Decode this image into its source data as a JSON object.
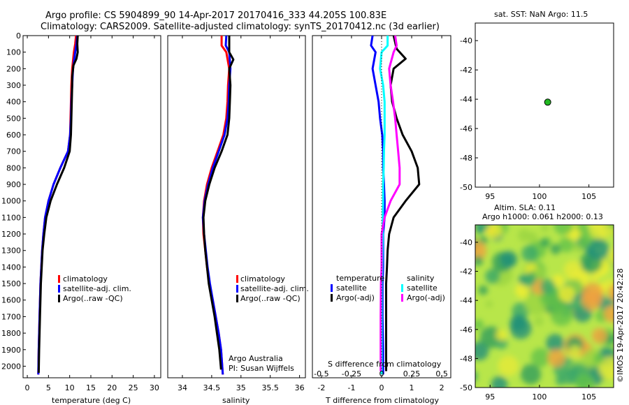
{
  "header": {
    "line1": "Argo profile: CS 5904899_90 14-Apr-2017 20170416_333 44.205S 100.83E",
    "line2": "Climatology: CARS2009. Satellite-adjusted climatology: synTS_20170412.nc (3d earlier)"
  },
  "colors": {
    "climatology": "#ff0000",
    "satellite": "#0000ff",
    "argo": "#000000",
    "sat_s": "#00ffff",
    "argo_s": "#ff00ff"
  },
  "chart_data": [
    {
      "id": "temperature",
      "type": "line",
      "xlabel": "temperature (deg C)",
      "xlim": [
        -1,
        31.5
      ],
      "xticks": [
        "0",
        "5",
        "10",
        "15",
        "20",
        "25",
        "30"
      ],
      "ylim": [
        0,
        2070
      ],
      "yticks": [
        "0",
        "100",
        "200",
        "300",
        "400",
        "500",
        "600",
        "700",
        "800",
        "900",
        "1000",
        "1100",
        "1200",
        "1300",
        "1400",
        "1500",
        "1600",
        "1700",
        "1800",
        "1900",
        "2000"
      ],
      "legend": [
        "climatology",
        "satellite-adj. clim.",
        "Argo(..raw -QC)"
      ],
      "series": [
        {
          "name": "climatology",
          "color": "#ff0000",
          "points": [
            [
              11.5,
              0
            ],
            [
              11.3,
              50
            ],
            [
              11.0,
              100
            ],
            [
              10.6,
              200
            ],
            [
              10.4,
              300
            ],
            [
              10.3,
              400
            ],
            [
              10.2,
              500
            ],
            [
              10.1,
              600
            ],
            [
              9.6,
              700
            ],
            [
              7.8,
              800
            ],
            [
              6.2,
              900
            ],
            [
              5.0,
              1000
            ],
            [
              4.2,
              1100
            ],
            [
              3.8,
              1200
            ],
            [
              3.5,
              1300
            ],
            [
              3.3,
              1400
            ],
            [
              3.1,
              1500
            ],
            [
              2.9,
              1700
            ],
            [
              2.7,
              1900
            ],
            [
              2.6,
              2050
            ]
          ]
        },
        {
          "name": "satellite-adj. clim.",
          "color": "#0000ff",
          "points": [
            [
              11.8,
              0
            ],
            [
              11.6,
              50
            ],
            [
              11.3,
              100
            ],
            [
              10.8,
              200
            ],
            [
              10.6,
              300
            ],
            [
              10.4,
              400
            ],
            [
              10.3,
              500
            ],
            [
              10.1,
              600
            ],
            [
              9.6,
              700
            ],
            [
              7.8,
              800
            ],
            [
              6.2,
              900
            ],
            [
              5.0,
              1000
            ],
            [
              4.2,
              1100
            ],
            [
              3.8,
              1200
            ],
            [
              3.5,
              1300
            ],
            [
              3.3,
              1400
            ],
            [
              3.1,
              1500
            ],
            [
              2.9,
              1700
            ],
            [
              2.7,
              1900
            ],
            [
              2.6,
              2050
            ]
          ]
        },
        {
          "name": "Argo(..raw -QC)",
          "color": "#000000",
          "points": [
            [
              11.9,
              0
            ],
            [
              11.8,
              50
            ],
            [
              11.9,
              100
            ],
            [
              11.6,
              140
            ],
            [
              10.9,
              180
            ],
            [
              10.6,
              250
            ],
            [
              10.6,
              300
            ],
            [
              10.5,
              400
            ],
            [
              10.4,
              500
            ],
            [
              10.3,
              600
            ],
            [
              10.0,
              700
            ],
            [
              8.7,
              800
            ],
            [
              7.0,
              900
            ],
            [
              5.5,
              1000
            ],
            [
              4.5,
              1100
            ],
            [
              4.0,
              1200
            ],
            [
              3.6,
              1300
            ],
            [
              3.4,
              1400
            ],
            [
              3.2,
              1500
            ],
            [
              3.0,
              1700
            ],
            [
              2.8,
              1900
            ],
            [
              2.7,
              2040
            ]
          ]
        }
      ]
    },
    {
      "id": "salinity",
      "type": "line",
      "xlabel": "salinity",
      "xlim": [
        33.75,
        36.1
      ],
      "xticks": [
        "34",
        "34.5",
        "35",
        "35.5",
        "36"
      ],
      "ylim": [
        0,
        2070
      ],
      "legend": [
        "climatology",
        "satellite-adj. clim.",
        "Argo(..raw -QC)"
      ],
      "annotations": [
        "Argo Australia",
        "PI: Susan Wijffels"
      ],
      "series": [
        {
          "name": "climatology",
          "color": "#ff0000",
          "points": [
            [
              34.67,
              0
            ],
            [
              34.67,
              60
            ],
            [
              34.75,
              100
            ],
            [
              34.8,
              200
            ],
            [
              34.78,
              300
            ],
            [
              34.77,
              400
            ],
            [
              34.75,
              500
            ],
            [
              34.7,
              600
            ],
            [
              34.6,
              700
            ],
            [
              34.5,
              800
            ],
            [
              34.42,
              900
            ],
            [
              34.37,
              1000
            ],
            [
              34.35,
              1100
            ],
            [
              34.36,
              1200
            ],
            [
              34.39,
              1300
            ],
            [
              34.42,
              1400
            ],
            [
              34.46,
              1500
            ],
            [
              34.52,
              1600
            ],
            [
              34.57,
              1700
            ],
            [
              34.62,
              1800
            ],
            [
              34.66,
              1900
            ],
            [
              34.69,
              2050
            ]
          ]
        },
        {
          "name": "satellite-adj. clim.",
          "color": "#0000ff",
          "points": [
            [
              34.75,
              0
            ],
            [
              34.74,
              60
            ],
            [
              34.8,
              100
            ],
            [
              34.82,
              200
            ],
            [
              34.8,
              300
            ],
            [
              34.79,
              400
            ],
            [
              34.77,
              500
            ],
            [
              34.72,
              600
            ],
            [
              34.62,
              700
            ],
            [
              34.52,
              800
            ],
            [
              34.44,
              900
            ],
            [
              34.38,
              1000
            ],
            [
              34.35,
              1100
            ],
            [
              34.37,
              1200
            ],
            [
              34.4,
              1300
            ],
            [
              34.43,
              1400
            ],
            [
              34.47,
              1500
            ],
            [
              34.52,
              1600
            ],
            [
              34.57,
              1700
            ],
            [
              34.62,
              1800
            ],
            [
              34.66,
              1900
            ],
            [
              34.69,
              2050
            ]
          ]
        },
        {
          "name": "Argo(..raw -QC)",
          "color": "#000000",
          "points": [
            [
              34.8,
              0
            ],
            [
              34.8,
              100
            ],
            [
              34.87,
              145
            ],
            [
              34.8,
              200
            ],
            [
              34.82,
              300
            ],
            [
              34.81,
              400
            ],
            [
              34.8,
              500
            ],
            [
              34.77,
              600
            ],
            [
              34.67,
              700
            ],
            [
              34.55,
              800
            ],
            [
              34.46,
              900
            ],
            [
              34.39,
              1000
            ],
            [
              34.36,
              1100
            ],
            [
              34.37,
              1200
            ],
            [
              34.39,
              1300
            ],
            [
              34.42,
              1400
            ],
            [
              34.45,
              1500
            ],
            [
              34.5,
              1600
            ],
            [
              34.55,
              1700
            ],
            [
              34.59,
              1800
            ],
            [
              34.63,
              1900
            ],
            [
              34.66,
              2020
            ]
          ]
        }
      ]
    },
    {
      "id": "difference",
      "type": "line",
      "xlabel": "T difference from climatology",
      "xlim": [
        -2.3,
        2.3
      ],
      "xticks": [
        "-2",
        "-1",
        "0",
        "1",
        "2"
      ],
      "top_label": "S difference from climatology",
      "top_ticks": [
        "-0.5",
        "-0.25",
        "0",
        "0.25",
        "0.5"
      ],
      "ylim": [
        0,
        2070
      ],
      "legend_headers": [
        "temperature",
        "salinity"
      ],
      "legend": [
        "satellite",
        "Argo(-adj)",
        "satellite",
        "Argo(-adj)"
      ],
      "series": [
        {
          "name": "satellite",
          "quantity": "temperature",
          "color": "#0000ff",
          "points": [
            [
              -0.3,
              0
            ],
            [
              -0.35,
              60
            ],
            [
              -0.2,
              100
            ],
            [
              -0.3,
              200
            ],
            [
              -0.2,
              300
            ],
            [
              -0.1,
              400
            ],
            [
              -0.05,
              500
            ],
            [
              0.02,
              600
            ],
            [
              0.05,
              700
            ],
            [
              0.05,
              800
            ],
            [
              0.08,
              900
            ],
            [
              0.1,
              1000
            ],
            [
              0.1,
              1100
            ],
            [
              0.05,
              1200
            ],
            [
              0.05,
              1300
            ],
            [
              0.05,
              1400
            ],
            [
              0.03,
              1500
            ],
            [
              0.03,
              1700
            ],
            [
              0.05,
              1900
            ],
            [
              0.05,
              2050
            ]
          ]
        },
        {
          "name": "Argo(-adj)",
          "quantity": "temperature",
          "color": "#000000",
          "points": [
            [
              0.4,
              0
            ],
            [
              0.5,
              80
            ],
            [
              0.8,
              140
            ],
            [
              0.4,
              200
            ],
            [
              0.3,
              300
            ],
            [
              0.35,
              400
            ],
            [
              0.5,
              500
            ],
            [
              0.7,
              600
            ],
            [
              1.0,
              700
            ],
            [
              1.2,
              800
            ],
            [
              1.25,
              900
            ],
            [
              0.8,
              1000
            ],
            [
              0.4,
              1100
            ],
            [
              0.25,
              1200
            ],
            [
              0.2,
              1300
            ],
            [
              0.18,
              1400
            ],
            [
              0.15,
              1500
            ],
            [
              0.15,
              1700
            ],
            [
              0.15,
              1900
            ],
            [
              0.15,
              2030
            ]
          ]
        },
        {
          "name": "satellite",
          "quantity": "salinity",
          "color": "#00ffff",
          "points": [
            [
              0.2,
              0
            ],
            [
              0.2,
              60
            ],
            [
              0.0,
              100
            ],
            [
              -0.05,
              200
            ],
            [
              0.05,
              300
            ],
            [
              0.1,
              400
            ],
            [
              0.1,
              500
            ],
            [
              0.1,
              600
            ],
            [
              0.08,
              700
            ],
            [
              0.07,
              800
            ],
            [
              0.05,
              900
            ],
            [
              0.05,
              1000
            ],
            [
              0.04,
              1100
            ],
            [
              0.04,
              1200
            ],
            [
              0.03,
              1300
            ],
            [
              0.02,
              1400
            ],
            [
              0.0,
              1500
            ],
            [
              0.0,
              1700
            ],
            [
              0.0,
              1900
            ],
            [
              0.0,
              2050
            ]
          ]
        },
        {
          "name": "Argo(-adj)",
          "quantity": "salinity",
          "color": "#ff00ff",
          "points": [
            [
              0.45,
              0
            ],
            [
              0.5,
              60
            ],
            [
              0.4,
              100
            ],
            [
              0.25,
              200
            ],
            [
              0.3,
              300
            ],
            [
              0.38,
              400
            ],
            [
              0.45,
              500
            ],
            [
              0.5,
              600
            ],
            [
              0.55,
              700
            ],
            [
              0.6,
              800
            ],
            [
              0.6,
              900
            ],
            [
              0.3,
              1000
            ],
            [
              0.1,
              1100
            ],
            [
              0.0,
              1200
            ],
            [
              0.0,
              1300
            ],
            [
              0.0,
              1400
            ],
            [
              -0.02,
              1500
            ],
            [
              -0.03,
              1700
            ],
            [
              -0.03,
              1900
            ],
            [
              -0.03,
              2030
            ]
          ]
        }
      ]
    },
    {
      "id": "map",
      "type": "scatter",
      "title": "sat. SST: NaN Argo: 11.5",
      "xlim": [
        93.5,
        107.5
      ],
      "ylim": [
        -50,
        -38.8
      ],
      "xticks": [
        "95",
        "100",
        "105"
      ],
      "yticks": [
        "-40",
        "-42",
        "-44",
        "-46",
        "-48",
        "-50"
      ],
      "points": [
        [
          100.83,
          -44.2
        ]
      ]
    },
    {
      "id": "sla",
      "type": "heatmap",
      "title1": "Altim. SLA: 0.11",
      "title2": "Argo h1000: 0.061 h2000: 0.13",
      "xlim": [
        93.5,
        107.5
      ],
      "ylim": [
        -50,
        -38.8
      ],
      "xticks": [
        "95",
        "100",
        "105"
      ],
      "yticks": [
        "-40",
        "-42",
        "-44",
        "-46",
        "-48",
        "-50"
      ]
    }
  ],
  "footer": {
    "stamp": "©IMOS 19-Apr-2017 20:42:28"
  }
}
